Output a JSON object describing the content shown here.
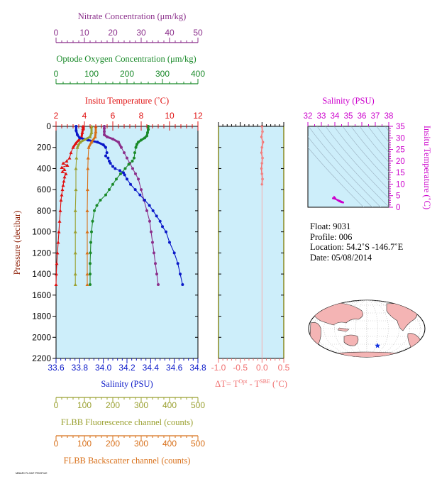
{
  "chart_data": {
    "type": "line",
    "main_panel": {
      "ylabel": "Pressure (decibar)",
      "ylim": [
        2200,
        0
      ],
      "yticks": [
        0,
        200,
        400,
        600,
        800,
        1000,
        1200,
        1400,
        1600,
        1800,
        2000,
        2200
      ],
      "axes": {
        "nitrate": {
          "label": "Nitrate Concentration (μm/kg)",
          "color": "#8b2f8b",
          "range": [
            0,
            50
          ],
          "ticks": [
            0,
            10,
            20,
            30,
            40,
            50
          ]
        },
        "oxygen": {
          "label": "Optode Oxygen Concentration (μm/kg)",
          "color": "#1a8a2a",
          "range": [
            0,
            400
          ],
          "ticks": [
            0,
            100,
            200,
            300,
            400
          ]
        },
        "temp": {
          "label": "Insitu Temperature (˚C)",
          "color": "#e01010",
          "range": [
            2,
            12
          ],
          "ticks": [
            2,
            4,
            6,
            8,
            10,
            12
          ]
        },
        "salinity": {
          "label": "Salinity (PSU)",
          "color": "#0a18c8",
          "range": [
            33.6,
            34.8
          ],
          "ticks": [
            "33.6",
            "33.8",
            "34.0",
            "34.2",
            "34.4",
            "34.6",
            "34.8"
          ]
        },
        "fluor": {
          "label": "FLBB Fluorescence channel (counts)",
          "color": "#9aa030",
          "range": [
            0,
            500
          ],
          "ticks": [
            0,
            100,
            200,
            300,
            400,
            500
          ]
        },
        "bscat": {
          "label": "FLBB Backscatter channel (counts)",
          "color": "#d8701a",
          "range": [
            0,
            500
          ],
          "ticks": [
            0,
            100,
            200,
            300,
            400,
            500
          ]
        }
      },
      "series": [
        {
          "name": "Nitrate",
          "axis": "nitrate",
          "color": "#8b2f8b",
          "points": [
            [
              17,
              0
            ],
            [
              17,
              20
            ],
            [
              17,
              50
            ],
            [
              17,
              80
            ],
            [
              18,
              100
            ],
            [
              20,
              120
            ],
            [
              22,
              150
            ],
            [
              23,
              200
            ],
            [
              24,
              250
            ],
            [
              25,
              300
            ],
            [
              26,
              350
            ],
            [
              27,
              400
            ],
            [
              28,
              450
            ],
            [
              29,
              500
            ],
            [
              30,
              600
            ],
            [
              31,
              700
            ],
            [
              32,
              800
            ],
            [
              33,
              900
            ],
            [
              33.5,
              1000
            ],
            [
              34,
              1100
            ],
            [
              34.5,
              1200
            ],
            [
              35,
              1300
            ],
            [
              35.5,
              1400
            ],
            [
              36,
              1500
            ]
          ]
        },
        {
          "name": "Oxygen",
          "axis": "oxygen",
          "color": "#1a8a2a",
          "points": [
            [
              260,
              0
            ],
            [
              260,
              30
            ],
            [
              258,
              60
            ],
            [
              256,
              90
            ],
            [
              250,
              110
            ],
            [
              240,
              130
            ],
            [
              232,
              150
            ],
            [
              228,
              170
            ],
            [
              225,
              200
            ],
            [
              222,
              250
            ],
            [
              220,
              300
            ],
            [
              215,
              330
            ],
            [
              205,
              360
            ],
            [
              195,
              400
            ],
            [
              182,
              450
            ],
            [
              170,
              500
            ],
            [
              160,
              550
            ],
            [
              150,
              600
            ],
            [
              140,
              650
            ],
            [
              125,
              700
            ],
            [
              115,
              750
            ],
            [
              108,
              800
            ],
            [
              103,
              900
            ],
            [
              100,
              1000
            ],
            [
              98,
              1100
            ],
            [
              97,
              1200
            ],
            [
              96,
              1300
            ],
            [
              96,
              1400
            ],
            [
              96,
              1500
            ]
          ]
        },
        {
          "name": "Temperature",
          "axis": "temp",
          "color": "#e01010",
          "points": [
            [
              3.9,
              0
            ],
            [
              3.9,
              20
            ],
            [
              3.85,
              60
            ],
            [
              3.8,
              100
            ],
            [
              3.6,
              130
            ],
            [
              3.4,
              160
            ],
            [
              3.2,
              200
            ],
            [
              3.05,
              250
            ],
            [
              2.95,
              300
            ],
            [
              2.75,
              330
            ],
            [
              2.5,
              350
            ],
            [
              2.8,
              370
            ],
            [
              2.4,
              390
            ],
            [
              2.6,
              410
            ],
            [
              2.45,
              430
            ],
            [
              2.7,
              450
            ],
            [
              2.6,
              480
            ],
            [
              2.55,
              520
            ],
            [
              2.5,
              560
            ],
            [
              2.45,
              600
            ],
            [
              2.4,
              650
            ],
            [
              2.35,
              700
            ],
            [
              2.3,
              800
            ],
            [
              2.25,
              900
            ],
            [
              2.2,
              1000
            ],
            [
              2.15,
              1100
            ],
            [
              2.1,
              1200
            ],
            [
              2.05,
              1300
            ],
            [
              2.02,
              1400
            ],
            [
              2.0,
              1500
            ]
          ]
        },
        {
          "name": "Salinity",
          "axis": "salinity",
          "color": "#0a18c8",
          "points": [
            [
              33.77,
              0
            ],
            [
              33.77,
              40
            ],
            [
              33.78,
              80
            ],
            [
              33.8,
              110
            ],
            [
              33.87,
              130
            ],
            [
              33.95,
              150
            ],
            [
              34.0,
              175
            ],
            [
              34.02,
              200
            ],
            [
              34.03,
              250
            ],
            [
              34.02,
              280
            ],
            [
              34.04,
              300
            ],
            [
              34.05,
              330
            ],
            [
              34.06,
              350
            ],
            [
              34.08,
              380
            ],
            [
              34.1,
              400
            ],
            [
              34.14,
              420
            ],
            [
              34.17,
              440
            ],
            [
              34.18,
              460
            ],
            [
              34.2,
              500
            ],
            [
              34.23,
              550
            ],
            [
              34.27,
              600
            ],
            [
              34.31,
              650
            ],
            [
              34.35,
              700
            ],
            [
              34.39,
              750
            ],
            [
              34.42,
              800
            ],
            [
              34.45,
              850
            ],
            [
              34.48,
              900
            ],
            [
              34.5,
              950
            ],
            [
              34.53,
              1000
            ],
            [
              34.56,
              1100
            ],
            [
              34.6,
              1200
            ],
            [
              34.63,
              1300
            ],
            [
              34.65,
              1400
            ],
            [
              34.67,
              1500
            ]
          ]
        },
        {
          "name": "Fluorescence",
          "axis": "fluor",
          "color": "#9aa030",
          "points": [
            [
              125,
              0
            ],
            [
              125,
              60
            ],
            [
              120,
              100
            ],
            [
              85,
              150
            ],
            [
              75,
              200
            ],
            [
              72,
              300
            ],
            [
              70,
              400
            ],
            [
              70,
              600
            ],
            [
              68,
              800
            ],
            [
              68,
              1000
            ],
            [
              68,
              1200
            ],
            [
              68,
              1400
            ],
            [
              68,
              1500
            ]
          ]
        },
        {
          "name": "Backscatter",
          "axis": "bscat",
          "color": "#d8701a",
          "points": [
            [
              140,
              0
            ],
            [
              140,
              50
            ],
            [
              138,
              100
            ],
            [
              125,
              150
            ],
            [
              115,
              200
            ],
            [
              113,
              300
            ],
            [
              112,
              400
            ],
            [
              111,
              600
            ],
            [
              110,
              800
            ],
            [
              110,
              1000
            ],
            [
              110,
              1200
            ],
            [
              110,
              1400
            ],
            [
              110,
              1500
            ]
          ]
        }
      ]
    },
    "delta_panel": {
      "xlabel": "ΔT= T",
      "xlabel_sup1": "Opt",
      "xlabel_mid": " - T",
      "xlabel_sup2": "SBE",
      "xlabel_end": " (˚C)",
      "color": "#f07070",
      "xrange": [
        -1.0,
        0.5
      ],
      "xticks": [
        "-1.0",
        "-0.5",
        "0.0",
        "0.5"
      ],
      "points": [
        [
          0.0,
          0
        ],
        [
          0.01,
          50
        ],
        [
          -0.01,
          100
        ],
        [
          0.02,
          150
        ],
        [
          0.0,
          200
        ],
        [
          -0.01,
          250
        ],
        [
          0.01,
          300
        ],
        [
          0.0,
          350
        ],
        [
          -0.01,
          400
        ],
        [
          0.0,
          450
        ],
        [
          0.01,
          500
        ],
        [
          0.0,
          550
        ]
      ]
    },
    "ts_panel": {
      "title": "Salinity (PSU)",
      "ylabel": "Insitu Temperature (˚C)",
      "xticks": [
        32,
        33,
        34,
        35,
        36,
        37,
        38
      ],
      "yticks": [
        0,
        5,
        10,
        15,
        20,
        25,
        30,
        35
      ],
      "xrange": [
        32,
        38
      ],
      "yrange": [
        0,
        35
      ],
      "color": "#cc00cc",
      "points": [
        [
          33.9,
          3.9
        ],
        [
          33.95,
          4.5
        ],
        [
          34.0,
          4.2
        ],
        [
          34.05,
          3.8
        ],
        [
          34.1,
          3.4
        ],
        [
          34.2,
          3.0
        ],
        [
          34.3,
          2.6
        ],
        [
          34.4,
          2.3
        ],
        [
          34.5,
          2.1
        ],
        [
          34.6,
          2.0
        ],
        [
          34.67,
          2.0
        ],
        [
          34.5,
          2.5
        ],
        [
          34.2,
          3.2
        ],
        [
          34.0,
          3.6
        ],
        [
          33.8,
          3.9
        ]
      ]
    },
    "map": {
      "marker_lat": -54.2,
      "marker_lon": -146.7,
      "marker_color": "#1030e0"
    }
  },
  "info": {
    "float": "Float:  9031",
    "profile": "Profile:  006",
    "location": "Location:  54.2˚S  -146.7˚E",
    "date": "Date:  05/08/2014"
  },
  "footer": "MBARI FLOAT PROFILE"
}
